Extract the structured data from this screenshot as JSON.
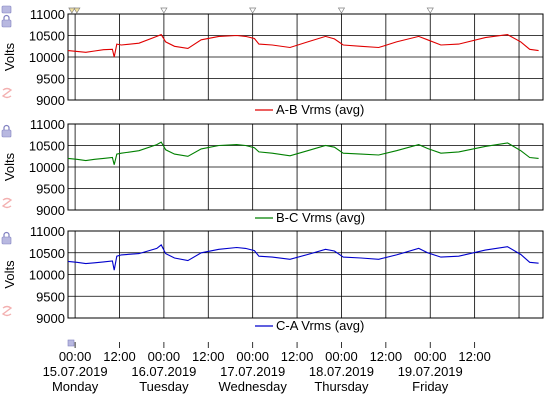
{
  "chart_data": [
    {
      "type": "line",
      "ylabel": "Volts",
      "ylim": [
        9000,
        11000
      ],
      "yticks": [
        9000,
        9500,
        10000,
        10500,
        11000
      ],
      "grid": true,
      "legend_position": "bottom-center",
      "series": [
        {
          "name": "A-B Vrms (avg)",
          "color": "#e00000",
          "points": [
            [
              0.0,
              10150
            ],
            [
              0.1,
              10130
            ],
            [
              0.2,
              10110
            ],
            [
              0.3,
              10140
            ],
            [
              0.4,
              10170
            ],
            [
              0.5,
              10180
            ],
            [
              0.52,
              10000
            ],
            [
              0.55,
              10300
            ],
            [
              0.6,
              10280
            ],
            [
              0.8,
              10320
            ],
            [
              1.0,
              10480
            ],
            [
              1.05,
              10520
            ],
            [
              1.1,
              10350
            ],
            [
              1.2,
              10250
            ],
            [
              1.35,
              10200
            ],
            [
              1.5,
              10400
            ],
            [
              1.7,
              10480
            ],
            [
              1.9,
              10500
            ],
            [
              2.0,
              10480
            ],
            [
              2.1,
              10430
            ],
            [
              2.15,
              10300
            ],
            [
              2.3,
              10280
            ],
            [
              2.5,
              10220
            ],
            [
              2.7,
              10350
            ],
            [
              2.9,
              10480
            ],
            [
              3.0,
              10420
            ],
            [
              3.1,
              10280
            ],
            [
              3.3,
              10250
            ],
            [
              3.5,
              10220
            ],
            [
              3.7,
              10350
            ],
            [
              3.95,
              10480
            ],
            [
              4.05,
              10400
            ],
            [
              4.2,
              10280
            ],
            [
              4.4,
              10300
            ],
            [
              4.7,
              10450
            ],
            [
              4.95,
              10520
            ],
            [
              5.1,
              10350
            ],
            [
              5.2,
              10180
            ],
            [
              5.3,
              10150
            ]
          ]
        }
      ]
    },
    {
      "type": "line",
      "ylabel": "Volts",
      "ylim": [
        9000,
        11000
      ],
      "yticks": [
        9000,
        9500,
        10000,
        10500,
        11000
      ],
      "grid": true,
      "legend_position": "bottom-center",
      "series": [
        {
          "name": "B-C Vrms (avg)",
          "color": "#008000",
          "points": [
            [
              0.0,
              10200
            ],
            [
              0.1,
              10180
            ],
            [
              0.2,
              10150
            ],
            [
              0.3,
              10180
            ],
            [
              0.4,
              10200
            ],
            [
              0.5,
              10220
            ],
            [
              0.52,
              10050
            ],
            [
              0.55,
              10300
            ],
            [
              0.6,
              10320
            ],
            [
              0.8,
              10380
            ],
            [
              1.0,
              10520
            ],
            [
              1.05,
              10580
            ],
            [
              1.1,
              10400
            ],
            [
              1.2,
              10300
            ],
            [
              1.35,
              10250
            ],
            [
              1.5,
              10420
            ],
            [
              1.7,
              10500
            ],
            [
              1.9,
              10520
            ],
            [
              2.0,
              10500
            ],
            [
              2.1,
              10450
            ],
            [
              2.15,
              10350
            ],
            [
              2.3,
              10320
            ],
            [
              2.5,
              10260
            ],
            [
              2.7,
              10380
            ],
            [
              2.9,
              10500
            ],
            [
              3.0,
              10460
            ],
            [
              3.1,
              10320
            ],
            [
              3.3,
              10300
            ],
            [
              3.5,
              10280
            ],
            [
              3.7,
              10380
            ],
            [
              3.95,
              10520
            ],
            [
              4.05,
              10430
            ],
            [
              4.2,
              10320
            ],
            [
              4.4,
              10350
            ],
            [
              4.7,
              10480
            ],
            [
              4.95,
              10560
            ],
            [
              5.1,
              10380
            ],
            [
              5.2,
              10220
            ],
            [
              5.3,
              10200
            ]
          ]
        }
      ]
    },
    {
      "type": "line",
      "ylabel": "Volts",
      "ylim": [
        9000,
        11000
      ],
      "yticks": [
        9000,
        9500,
        10000,
        10500,
        11000
      ],
      "grid": true,
      "legend_position": "bottom-center",
      "series": [
        {
          "name": "C-A Vrms (avg)",
          "color": "#0000cc",
          "points": [
            [
              0.0,
              10300
            ],
            [
              0.1,
              10280
            ],
            [
              0.2,
              10250
            ],
            [
              0.3,
              10270
            ],
            [
              0.4,
              10290
            ],
            [
              0.5,
              10310
            ],
            [
              0.52,
              10100
            ],
            [
              0.55,
              10420
            ],
            [
              0.6,
              10450
            ],
            [
              0.8,
              10480
            ],
            [
              1.0,
              10600
            ],
            [
              1.05,
              10680
            ],
            [
              1.1,
              10480
            ],
            [
              1.2,
              10380
            ],
            [
              1.35,
              10320
            ],
            [
              1.5,
              10500
            ],
            [
              1.7,
              10580
            ],
            [
              1.9,
              10620
            ],
            [
              2.0,
              10600
            ],
            [
              2.1,
              10550
            ],
            [
              2.15,
              10420
            ],
            [
              2.3,
              10400
            ],
            [
              2.5,
              10350
            ],
            [
              2.7,
              10460
            ],
            [
              2.9,
              10580
            ],
            [
              3.0,
              10540
            ],
            [
              3.1,
              10400
            ],
            [
              3.3,
              10380
            ],
            [
              3.5,
              10350
            ],
            [
              3.7,
              10450
            ],
            [
              3.95,
              10600
            ],
            [
              4.05,
              10500
            ],
            [
              4.2,
              10400
            ],
            [
              4.4,
              10420
            ],
            [
              4.7,
              10560
            ],
            [
              4.95,
              10640
            ],
            [
              5.1,
              10460
            ],
            [
              5.2,
              10280
            ],
            [
              5.3,
              10260
            ]
          ]
        }
      ]
    }
  ],
  "x_axis": {
    "labels": [
      {
        "time": "00:00",
        "date": "15.07.2019",
        "day": "Monday"
      },
      {
        "time": "12:00",
        "date": "",
        "day": ""
      },
      {
        "time": "00:00",
        "date": "16.07.2019",
        "day": "Tuesday"
      },
      {
        "time": "12:00",
        "date": "",
        "day": ""
      },
      {
        "time": "00:00",
        "date": "17.07.2019",
        "day": "Wednesday"
      },
      {
        "time": "12:00",
        "date": "",
        "day": ""
      },
      {
        "time": "00:00",
        "date": "18.07.2019",
        "day": "Thursday"
      },
      {
        "time": "12:00",
        "date": "",
        "day": ""
      },
      {
        "time": "00:00",
        "date": "19.07.2019",
        "day": "Friday"
      },
      {
        "time": "12:00",
        "date": "",
        "day": ""
      }
    ]
  },
  "markers": {
    "count": 5
  },
  "icons": {
    "lock": "lock-icon",
    "scale": "scale-icon",
    "top": "triangle-marker-icon"
  }
}
